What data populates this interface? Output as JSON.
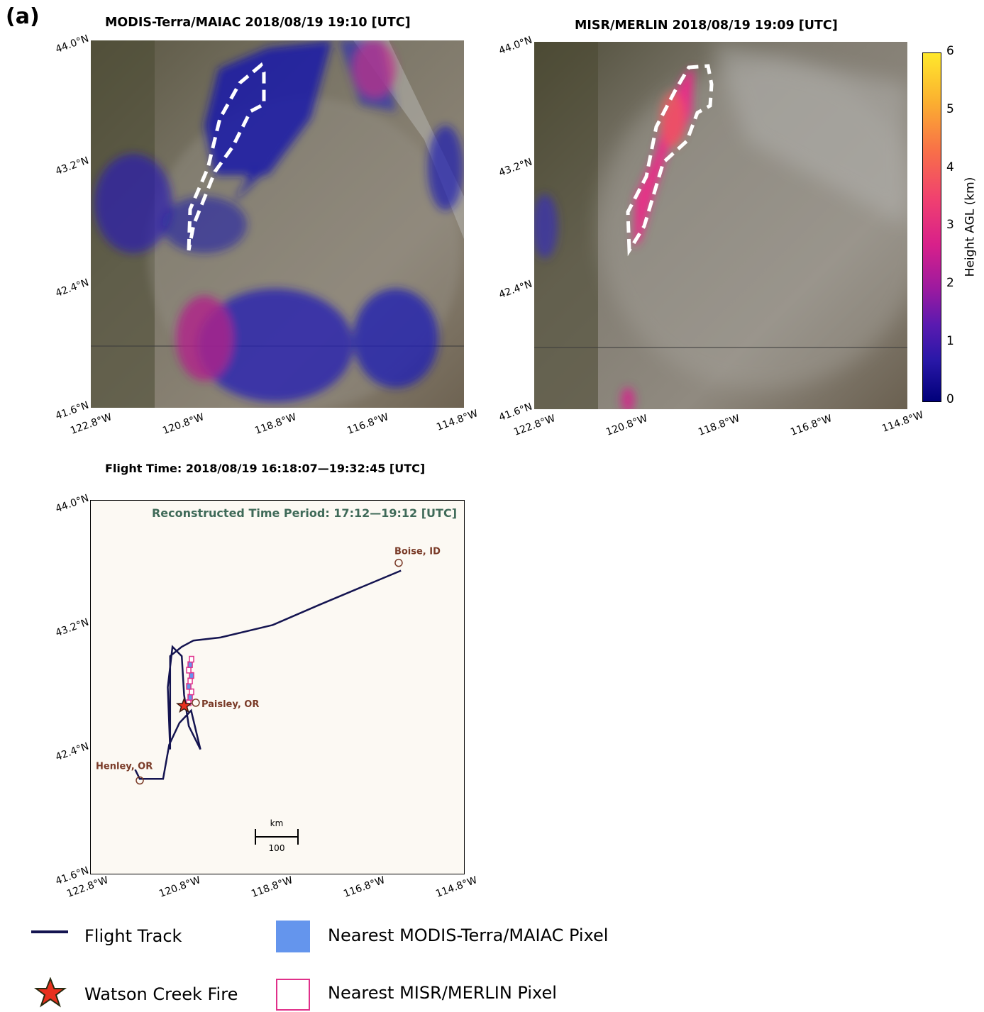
{
  "panel_label": "(a)",
  "chart_data": [
    {
      "type": "heatmap",
      "title": "MODIS-Terra/MAIAC   2018/08/19 19:10 [UTC]",
      "xlim": [
        -122.8,
        -114.8
      ],
      "ylim": [
        41.6,
        44.0
      ],
      "xticks": [
        "122.8°W",
        "120.8°W",
        "118.8°W",
        "116.8°W",
        "114.8°W"
      ],
      "yticks": [
        "44.0°N",
        "43.2°N",
        "42.4°N",
        "41.6°N"
      ],
      "colorbar_range": [
        0,
        6
      ],
      "grid": false
    },
    {
      "type": "heatmap",
      "title": "MISR/MERLIN  2018/08/19 19:09 [UTC]",
      "xlim": [
        -122.8,
        -114.8
      ],
      "ylim": [
        41.6,
        44.0
      ],
      "xticks": [
        "122.8°W",
        "120.8°W",
        "118.8°W",
        "116.8°W",
        "114.8°W"
      ],
      "yticks": [
        "44.0°N",
        "43.2°N",
        "42.4°N",
        "41.6°N"
      ],
      "colorbar": {
        "label": "Height AGL (km)",
        "ticks": [
          "0",
          "1",
          "2",
          "3",
          "4",
          "5",
          "6"
        ],
        "range": [
          0,
          6
        ]
      },
      "grid": false
    },
    {
      "type": "line",
      "title": "Flight Time: 2018/08/19 16:18:07—19:32:45 [UTC]",
      "annotation": "Reconstructed Time Period: 17:12—19:12 [UTC]",
      "xlim": [
        -122.8,
        -114.8
      ],
      "ylim": [
        41.6,
        44.0
      ],
      "xticks": [
        "122.8°W",
        "120.8°W",
        "118.8°W",
        "116.8°W",
        "114.8°W"
      ],
      "yticks": [
        "44.0°N",
        "43.2°N",
        "42.4°N",
        "41.6°N"
      ],
      "places": [
        {
          "name": "Boise, ID",
          "lon": -116.2,
          "lat": 43.6
        },
        {
          "name": "Paisley, OR",
          "lon": -120.55,
          "lat": 42.7
        },
        {
          "name": "Henley, OR",
          "lon": -121.75,
          "lat": 42.2
        }
      ],
      "fire": {
        "lon": -120.8,
        "lat": 42.68
      },
      "scale_bar": {
        "unit": "km",
        "value": "100"
      },
      "track": [
        [
          -121.85,
          42.27
        ],
        [
          -121.75,
          42.21
        ],
        [
          -121.45,
          42.21
        ],
        [
          -121.25,
          42.21
        ],
        [
          -121.12,
          42.43
        ],
        [
          -120.9,
          42.57
        ],
        [
          -120.65,
          42.65
        ],
        [
          -120.45,
          42.4
        ],
        [
          -120.7,
          42.55
        ],
        [
          -120.8,
          42.75
        ],
        [
          -120.85,
          43.0
        ],
        [
          -121.05,
          43.06
        ],
        [
          -121.15,
          42.8
        ],
        [
          -121.1,
          42.4
        ],
        [
          -121.1,
          43.0
        ],
        [
          -120.85,
          43.06
        ],
        [
          -120.6,
          43.1
        ],
        [
          -120.02,
          43.12
        ],
        [
          -118.9,
          43.2
        ],
        [
          -117.9,
          43.33
        ],
        [
          -116.15,
          43.55
        ]
      ],
      "legend": [
        {
          "label": "Flight Track",
          "color": "#141450"
        },
        {
          "label": "Nearest MODIS-Terra/MAIAC Pixel",
          "color": "#6495ed"
        },
        {
          "label": "Watson Creek Fire",
          "color": "#e8301e"
        },
        {
          "label": "Nearest MISR/MERLIN Pixel",
          "color": "#e0308a"
        }
      ]
    }
  ]
}
